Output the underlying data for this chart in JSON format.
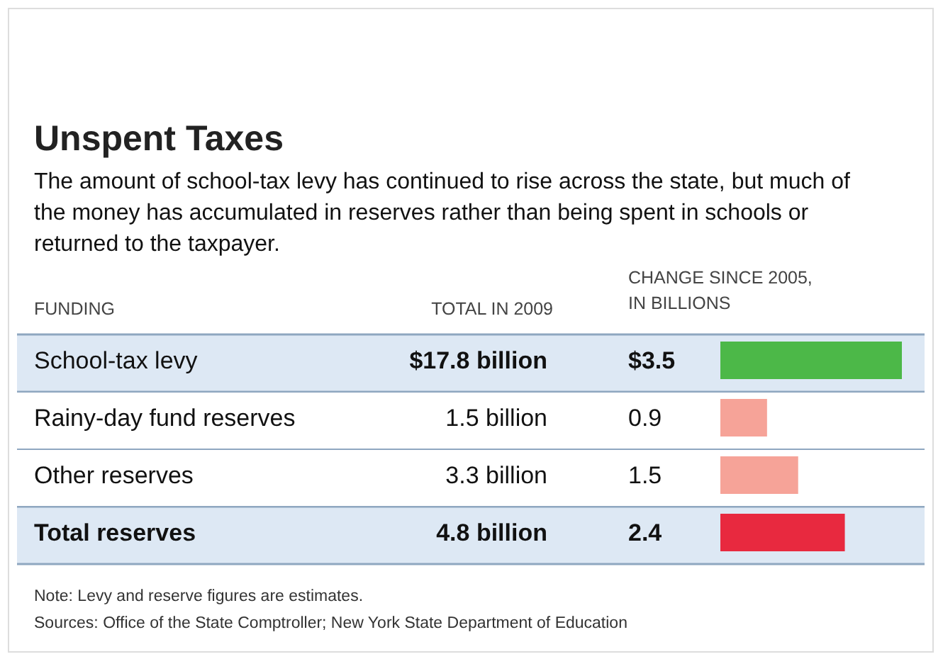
{
  "chart_data": {
    "type": "bar",
    "orientation": "horizontal",
    "title": "Unspent Taxes",
    "subtitle": "The amount of school-tax levy has continued to rise across the state, but much of the money has accumulated in reserves rather than being spent in schools or returned to the taxpayer.",
    "ylabel": "FUNDING",
    "xlabel": "CHANGE SINCE 2005, IN BILLIONS",
    "categories": [
      "School-tax levy",
      "Rainy-day fund reserves",
      "Other reserves",
      "Total reserves"
    ],
    "values": [
      3.5,
      0.9,
      1.5,
      2.4
    ],
    "colors": [
      "#4cb848",
      "#f6a398",
      "#f6a398",
      "#e8293f"
    ],
    "value_labels": [
      "$3.5",
      "0.9",
      "1.5",
      "2.4"
    ],
    "annotations": [
      "TOTAL IN 2009",
      "$17.8 billion",
      "1.5 billion",
      "3.3 billion",
      "4.8 billion",
      "Note: Levy and reserve figures are estimates.",
      "Sources: Office of the State Comptroller; New York State Department of Education"
    ]
  }
}
